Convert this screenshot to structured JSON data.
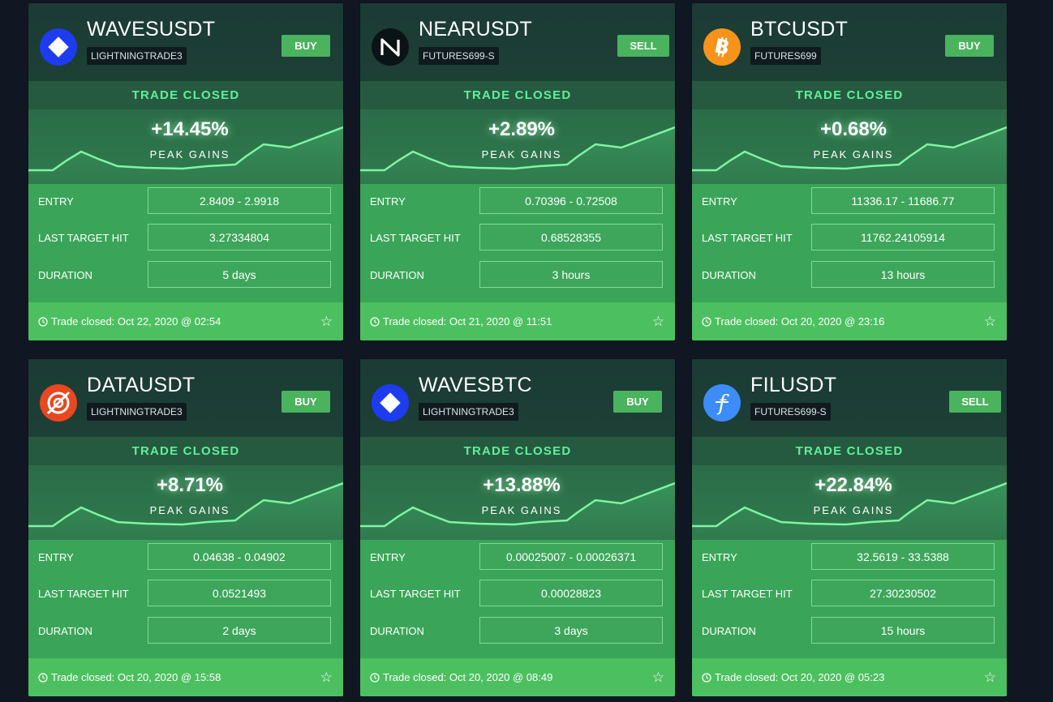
{
  "footer_prefix": "Trade closed:",
  "cards": [
    {
      "pair": "WAVESUSDT",
      "trader": "LIGHTNINGTRADE3",
      "side": "BUY",
      "status": "TRADE CLOSED",
      "gain": "+14.45%",
      "gain_label": "PEAK GAINS",
      "entry_label": "ENTRY",
      "entry": "2.8409 - 2.9918",
      "last_target_label": "LAST TARGET HIT",
      "last_target": "3.27334804",
      "duration_label": "DURATION",
      "duration": "5 days",
      "closed": "Oct 22, 2020 @ 02:54",
      "icon": "waves-icon",
      "icon_color": "#1d3cf0"
    },
    {
      "pair": "NEARUSDT",
      "trader": "FUTURES699-S",
      "side": "SELL",
      "status": "TRADE CLOSED",
      "gain": "+2.89%",
      "gain_label": "PEAK GAINS",
      "entry_label": "ENTRY",
      "entry": "0.70396 - 0.72508",
      "last_target_label": "LAST TARGET HIT",
      "last_target": "0.68528355",
      "duration_label": "DURATION",
      "duration": "3 hours",
      "closed": "Oct 21, 2020 @ 11:51",
      "icon": "near-icon",
      "icon_color": "#0b1316"
    },
    {
      "pair": "BTCUSDT",
      "trader": "FUTURES699",
      "side": "BUY",
      "status": "TRADE CLOSED",
      "gain": "+0.68%",
      "gain_label": "PEAK GAINS",
      "entry_label": "ENTRY",
      "entry": "11336.17 - 11686.77",
      "last_target_label": "LAST TARGET HIT",
      "last_target": "11762.24105914",
      "duration_label": "DURATION",
      "duration": "13 hours",
      "closed": "Oct 20, 2020 @ 23:16",
      "icon": "bitcoin-icon",
      "icon_color": "#f7931a"
    },
    {
      "pair": "DATAUSDT",
      "trader": "LIGHTNINGTRADE3",
      "side": "BUY",
      "status": "TRADE CLOSED",
      "gain": "+8.71%",
      "gain_label": "PEAK GAINS",
      "entry_label": "ENTRY",
      "entry": "0.04638 - 0.04902",
      "last_target_label": "LAST TARGET HIT",
      "last_target": "0.0521493",
      "duration_label": "DURATION",
      "duration": "2 days",
      "closed": "Oct 20, 2020 @ 15:58",
      "icon": "streamr-icon",
      "icon_color": "#e8471f"
    },
    {
      "pair": "WAVESBTC",
      "trader": "LIGHTNINGTRADE3",
      "side": "BUY",
      "status": "TRADE CLOSED",
      "gain": "+13.88%",
      "gain_label": "PEAK GAINS",
      "entry_label": "ENTRY",
      "entry": "0.00025007 - 0.00026371",
      "last_target_label": "LAST TARGET HIT",
      "last_target": "0.00028823",
      "duration_label": "DURATION",
      "duration": "3 days",
      "closed": "Oct 20, 2020 @ 08:49",
      "icon": "waves-icon",
      "icon_color": "#1d3cf0"
    },
    {
      "pair": "FILUSDT",
      "trader": "FUTURES699-S",
      "side": "SELL",
      "status": "TRADE CLOSED",
      "gain": "+22.84%",
      "gain_label": "PEAK GAINS",
      "entry_label": "ENTRY",
      "entry": "32.5619 - 33.5388",
      "last_target_label": "LAST TARGET HIT",
      "last_target": "27.30230502",
      "duration_label": "DURATION",
      "duration": "15 hours",
      "closed": "Oct 20, 2020 @ 05:23",
      "icon": "filecoin-icon",
      "icon_color": "#3c8dfa"
    }
  ]
}
